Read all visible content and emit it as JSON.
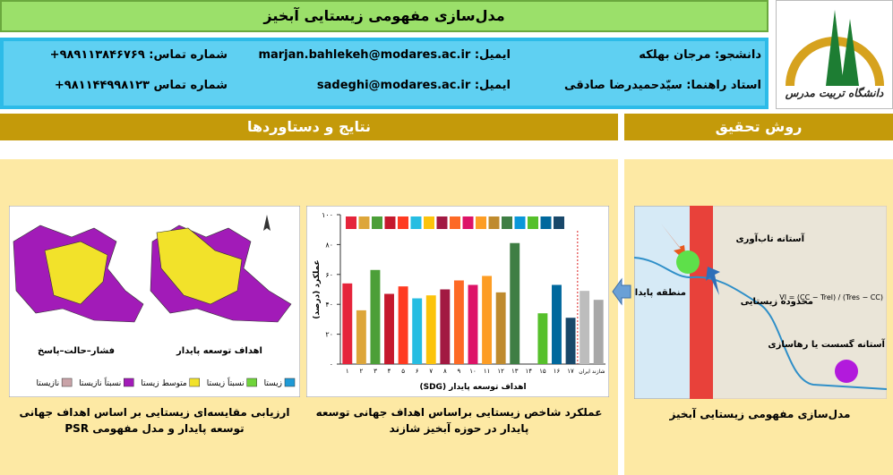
{
  "header": {
    "title": "مدل‌سازی مفهومی زیستایی آبخیز"
  },
  "info": {
    "rows": [
      [
        "دانشجو: مرجان بهلکه",
        "ایمیل: marjan.bahlekeh@modares.ac.ir",
        "شماره تماس: ۹۸۹۱۱۳۸۴۶۷۶۹+"
      ],
      [
        "استاد راهنما: سیّدحمیدرضا صادقی",
        "ایمیل: sadeghi@modares.ac.ir",
        "شماره تماس ۹۸۱۱۴۴۹۹۸۱۲۳+"
      ]
    ]
  },
  "logo": {
    "text": "دانشگاه تربیت مدرس"
  },
  "sections": {
    "results": "نتایج و دستاوردها",
    "method": "روش تحقیق"
  },
  "map": {
    "titles": [
      "فشار–حالت–پاسخ",
      "اهداف توسعه پایدار"
    ],
    "legend": [
      {
        "name": "زیستا",
        "color": "#1f9ad6"
      },
      {
        "name": "نسبتاً زیستا",
        "color": "#6fd43a"
      },
      {
        "name": "متوسط زیستا",
        "color": "#f2e22a"
      },
      {
        "name": "نسبتاً نازیستا",
        "color": "#a21bb8"
      },
      {
        "name": "نازیستا",
        "color": "#c9a3a8"
      }
    ],
    "caption": "ارزیابی مقایسه‌ای زیستایی بر اساس اهداف جهانی توسعه پایدار و مدل مفهومی PSR"
  },
  "diagram": {
    "labels": [
      "آستانه تاب‌آوری",
      "منطقه پایدار",
      "محدوده زیستایی",
      "آستانه گسست یا رهاسازی"
    ],
    "formula": "VI = (CC − Trel) / (Tres − CC)",
    "caption": "مدل‌سازی مفهومی زیستایی آبخیز"
  },
  "chart_data": {
    "type": "bar",
    "caption": "عملکرد شاخص زیستایی براساس اهداف جهانی توسعه پایدار در حوزه آبخیز شازند",
    "xlabel": "اهداف توسعه پایدار (SDG)",
    "ylabel": "عملکرد (درصد)",
    "categories": [
      "۱",
      "۲",
      "۳",
      "۴",
      "۵",
      "۶",
      "۷",
      "۸",
      "۹",
      "۱۰",
      "۱۱",
      "۱۲",
      "۱۳",
      "۱۴",
      "۱۵",
      "۱۶",
      "۱۷",
      "ایران",
      "شازند"
    ],
    "values": [
      54,
      36,
      63,
      47,
      52,
      44,
      46,
      50,
      56,
      53,
      59,
      48,
      81,
      null,
      34,
      53,
      31,
      49,
      43
    ],
    "colors": [
      "#e5243b",
      "#dda63a",
      "#4c9f38",
      "#c5192d",
      "#ff3a21",
      "#26bde2",
      "#fcc30b",
      "#a21942",
      "#fd6925",
      "#dd1367",
      "#fd9d24",
      "#bf8b2e",
      "#3f7e44",
      "#0a97d9",
      "#56c02b",
      "#00689d",
      "#19486a",
      "#bdbdbd",
      "#a8a8a8"
    ],
    "ylim": [
      0,
      100
    ],
    "yticks": [
      {
        "value": 0,
        "label": "۰"
      },
      {
        "value": 20,
        "label": "۲۰"
      },
      {
        "value": 40,
        "label": "۴۰"
      },
      {
        "value": 60,
        "label": "۶۰"
      },
      {
        "value": 80,
        "label": "۸۰"
      },
      {
        "value": 100,
        "label": "۱۰۰"
      }
    ]
  }
}
